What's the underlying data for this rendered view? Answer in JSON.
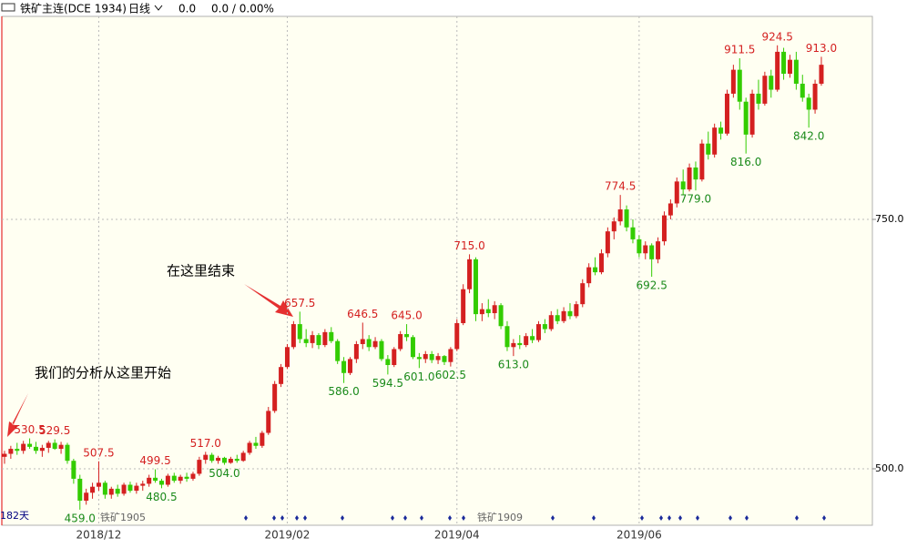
{
  "chart_data": {
    "type": "candlestick",
    "title": "铁矿主连(DCE 1934)",
    "period": "日线",
    "last": "0.0",
    "change": "0.0 / 0.00%",
    "annotations": [
      "我们的分析从这里开始",
      "在这里结束"
    ],
    "footer_labels": [
      "182天",
      "铁矿1905",
      "铁矿1909"
    ],
    "ylim": [
      443.4,
      953.5
    ],
    "yticks": [
      {
        "value": 750,
        "label": "750.0"
      },
      {
        "value": 500,
        "label": "500.0"
      }
    ],
    "xlim": [
      -0.43,
      138.12
    ],
    "xticks": [
      {
        "value": 15,
        "label": "2018/12"
      },
      {
        "value": 45,
        "label": "2019/02"
      },
      {
        "value": 72,
        "label": "2019/04"
      },
      {
        "value": 101,
        "label": "2019/06"
      }
    ],
    "up_color": "#d42020",
    "down_color": "#33cc00",
    "grid": true,
    "ohlc": [
      [
        512,
        518,
        505,
        515
      ],
      [
        515,
        523,
        510,
        520
      ],
      [
        520,
        526,
        514,
        518
      ],
      [
        518,
        528,
        515,
        525
      ],
      [
        525,
        530.5,
        520,
        522
      ],
      [
        522,
        527,
        515,
        518
      ],
      [
        518,
        524,
        512,
        521
      ],
      [
        521,
        528,
        516,
        526
      ],
      [
        526,
        529.5,
        519,
        520
      ],
      [
        520,
        527,
        515,
        524
      ],
      [
        524,
        526,
        505,
        508
      ],
      [
        508,
        510,
        485,
        490
      ],
      [
        490,
        494,
        459,
        468
      ],
      [
        468,
        480,
        464,
        476
      ],
      [
        476,
        486,
        470,
        482
      ],
      [
        482,
        507.5,
        478,
        486
      ],
      [
        486,
        488,
        470,
        474
      ],
      [
        474,
        482,
        470,
        480
      ],
      [
        480,
        484,
        472,
        475
      ],
      [
        475,
        486,
        473,
        484
      ],
      [
        484,
        487,
        476,
        478
      ],
      [
        478,
        486,
        475,
        483
      ],
      [
        483,
        488,
        478,
        485
      ],
      [
        485,
        494,
        482,
        491
      ],
      [
        491,
        499.5,
        486,
        488
      ],
      [
        488,
        490,
        480.5,
        484
      ],
      [
        484,
        495,
        482,
        493
      ],
      [
        493,
        496,
        486,
        488
      ],
      [
        488,
        494,
        485,
        492
      ],
      [
        492,
        496,
        487,
        490
      ],
      [
        490,
        497,
        488,
        495
      ],
      [
        495,
        512,
        493,
        509
      ],
      [
        509,
        517,
        505,
        514
      ],
      [
        514,
        516,
        506,
        508
      ],
      [
        508,
        513,
        505,
        511
      ],
      [
        511,
        512,
        504,
        506
      ],
      [
        506,
        512,
        505,
        510
      ],
      [
        510,
        514,
        506,
        508
      ],
      [
        508,
        518,
        507,
        516
      ],
      [
        516,
        528,
        514,
        526
      ],
      [
        526,
        532,
        520,
        523
      ],
      [
        523,
        538,
        521,
        536
      ],
      [
        536,
        562,
        534,
        558
      ],
      [
        558,
        588,
        556,
        585
      ],
      [
        585,
        605,
        582,
        602
      ],
      [
        602,
        625,
        600,
        622
      ],
      [
        622,
        648,
        620,
        645
      ],
      [
        645,
        657.5,
        626,
        630
      ],
      [
        630,
        640,
        622,
        626
      ],
      [
        626,
        638,
        621,
        634
      ],
      [
        634,
        636,
        620,
        624
      ],
      [
        624,
        640,
        622,
        637
      ],
      [
        637,
        642,
        626,
        628
      ],
      [
        628,
        630,
        605,
        608
      ],
      [
        608,
        612,
        586,
        596
      ],
      [
        596,
        612,
        594,
        610
      ],
      [
        610,
        628,
        606,
        625
      ],
      [
        625,
        646.5,
        620,
        630
      ],
      [
        630,
        634,
        618,
        622
      ],
      [
        622,
        632,
        620,
        628
      ],
      [
        628,
        630,
        608,
        610
      ],
      [
        610,
        614,
        594.5,
        604
      ],
      [
        604,
        622,
        602,
        620
      ],
      [
        620,
        638,
        618,
        635
      ],
      [
        635,
        645,
        628,
        632
      ],
      [
        632,
        634,
        610,
        612
      ],
      [
        612,
        616,
        601,
        610
      ],
      [
        610,
        618,
        606,
        615
      ],
      [
        615,
        618,
        606,
        609
      ],
      [
        609,
        616,
        605,
        613
      ],
      [
        613,
        614,
        604,
        607
      ],
      [
        607,
        622,
        602.5,
        620
      ],
      [
        620,
        650,
        618,
        646
      ],
      [
        646,
        685,
        644,
        680
      ],
      [
        680,
        715,
        676,
        710
      ],
      [
        710,
        712,
        648,
        655
      ],
      [
        655,
        666,
        648,
        660
      ],
      [
        660,
        670,
        652,
        656
      ],
      [
        656,
        668,
        650,
        664
      ],
      [
        664,
        666,
        640,
        643
      ],
      [
        643,
        648,
        618,
        622
      ],
      [
        622,
        630,
        613,
        626
      ],
      [
        626,
        634,
        620,
        624
      ],
      [
        624,
        636,
        622,
        633
      ],
      [
        633,
        640,
        626,
        629
      ],
      [
        629,
        648,
        627,
        645
      ],
      [
        645,
        650,
        636,
        640
      ],
      [
        640,
        658,
        638,
        654
      ],
      [
        654,
        660,
        645,
        648
      ],
      [
        648,
        662,
        646,
        658
      ],
      [
        658,
        666,
        650,
        653
      ],
      [
        653,
        668,
        651,
        665
      ],
      [
        665,
        690,
        662,
        686
      ],
      [
        686,
        706,
        682,
        702
      ],
      [
        702,
        712,
        694,
        697
      ],
      [
        697,
        720,
        695,
        716
      ],
      [
        716,
        742,
        712,
        738
      ],
      [
        738,
        752,
        730,
        748
      ],
      [
        748,
        774.5,
        744,
        760
      ],
      [
        760,
        764,
        738,
        742
      ],
      [
        742,
        750,
        726,
        730
      ],
      [
        730,
        734,
        712,
        716
      ],
      [
        716,
        728,
        710,
        724
      ],
      [
        724,
        726,
        692.5,
        710
      ],
      [
        710,
        732,
        706,
        728
      ],
      [
        728,
        758,
        724,
        754
      ],
      [
        754,
        770,
        750,
        766
      ],
      [
        766,
        792,
        762,
        788
      ],
      [
        788,
        800,
        775,
        780
      ],
      [
        780,
        806,
        778,
        802
      ],
      [
        802,
        808,
        779,
        790
      ],
      [
        790,
        830,
        788,
        826
      ],
      [
        826,
        838,
        810,
        815
      ],
      [
        815,
        846,
        812,
        842
      ],
      [
        842,
        848,
        830,
        836
      ],
      [
        836,
        880,
        834,
        876
      ],
      [
        876,
        905,
        872,
        900
      ],
      [
        900,
        911.5,
        860,
        868
      ],
      [
        868,
        872,
        816,
        835
      ],
      [
        835,
        880,
        832,
        876
      ],
      [
        876,
        890,
        860,
        866
      ],
      [
        866,
        898,
        864,
        894
      ],
      [
        894,
        900,
        872,
        880
      ],
      [
        880,
        924.5,
        878,
        918
      ],
      [
        918,
        922,
        890,
        896
      ],
      [
        896,
        915,
        892,
        910
      ],
      [
        910,
        918,
        880,
        886
      ],
      [
        886,
        895,
        868,
        872
      ],
      [
        872,
        876,
        842,
        860
      ],
      [
        860,
        890,
        856,
        886
      ],
      [
        886,
        913,
        884,
        905
      ]
    ],
    "high_labels": [
      {
        "index": 4,
        "label": "530.5"
      },
      {
        "index": 8,
        "label": "529.5"
      },
      {
        "index": 15,
        "label": "507.5"
      },
      {
        "index": 24,
        "label": "499.5"
      },
      {
        "index": 32,
        "label": "517.0"
      },
      {
        "index": 47,
        "label": "657.5"
      },
      {
        "index": 57,
        "label": "646.5"
      },
      {
        "index": 64,
        "label": "645.0"
      },
      {
        "index": 74,
        "label": "715.0"
      },
      {
        "index": 98,
        "label": "774.5"
      },
      {
        "index": 117,
        "label": "911.5"
      },
      {
        "index": 123,
        "label": "924.5"
      },
      {
        "index": 130,
        "label": "913.0"
      }
    ],
    "low_labels": [
      {
        "index": 12,
        "label": "459.0"
      },
      {
        "index": 25,
        "label": "480.5"
      },
      {
        "index": 35,
        "label": "504.0"
      },
      {
        "index": 54,
        "label": "586.0"
      },
      {
        "index": 61,
        "label": "594.5"
      },
      {
        "index": 66,
        "label": "601.0"
      },
      {
        "index": 71,
        "label": "602.5"
      },
      {
        "index": 81,
        "label": "613.0"
      },
      {
        "index": 103,
        "label": "692.5"
      },
      {
        "index": 110,
        "label": "779.0"
      },
      {
        "index": 118,
        "label": "816.0"
      },
      {
        "index": 128,
        "label": "842.0"
      }
    ]
  }
}
